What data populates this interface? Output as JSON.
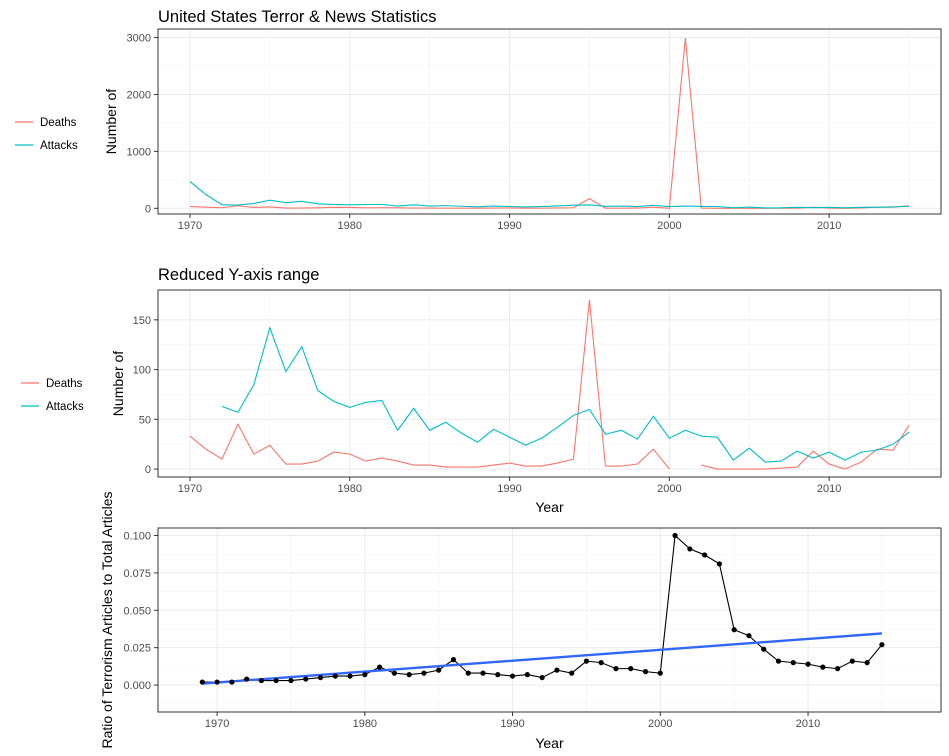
{
  "chart_data": [
    {
      "type": "line",
      "title": "United States Terror & News Statistics",
      "xlabel": "",
      "ylabel": "Number of",
      "xlim": [
        1968,
        2017
      ],
      "ylim": [
        -100,
        3150
      ],
      "x_ticks": [
        1970,
        1980,
        1990,
        2000,
        2010
      ],
      "y_ticks": [
        0,
        1000,
        2000,
        3000
      ],
      "grid": true,
      "legend": "left",
      "x": [
        1970,
        1971,
        1972,
        1973,
        1974,
        1975,
        1976,
        1977,
        1978,
        1979,
        1980,
        1981,
        1982,
        1983,
        1984,
        1985,
        1986,
        1987,
        1988,
        1989,
        1990,
        1991,
        1992,
        1993,
        1994,
        1995,
        1996,
        1997,
        1998,
        1999,
        2000,
        2001,
        2002,
        2003,
        2004,
        2005,
        2006,
        2007,
        2008,
        2009,
        2010,
        2011,
        2012,
        2013,
        2014,
        2015
      ],
      "series": [
        {
          "name": "Deaths",
          "color": "#F8766D",
          "values": [
            33,
            20,
            10,
            45,
            15,
            24,
            5,
            5,
            8,
            17,
            15,
            8,
            11,
            8,
            4,
            4,
            2,
            2,
            2,
            4,
            6,
            3,
            3,
            6,
            10,
            170,
            3,
            3,
            5,
            20,
            0,
            2990,
            4,
            0,
            0,
            0,
            0,
            1,
            2,
            18,
            5,
            0,
            7,
            20,
            19,
            44
          ]
        },
        {
          "name": "Attacks",
          "color": "#00BFC4",
          "values": [
            470,
            240,
            63,
            57,
            85,
            142,
            98,
            123,
            79,
            68,
            62,
            67,
            69,
            39,
            61,
            39,
            47,
            36,
            27,
            40,
            32,
            24,
            31,
            42,
            54,
            60,
            35,
            39,
            30,
            53,
            31,
            39,
            33,
            32,
            9,
            21,
            7,
            8,
            18,
            11,
            17,
            9,
            17,
            19,
            25,
            37
          ]
        }
      ]
    },
    {
      "type": "line",
      "title": "Reduced Y-axis range",
      "xlabel": "Year",
      "ylabel": "Number of",
      "xlim": [
        1968,
        2017
      ],
      "ylim": [
        -8,
        180
      ],
      "x_ticks": [
        1970,
        1980,
        1990,
        2000,
        2010
      ],
      "y_ticks": [
        0,
        50,
        100,
        150
      ],
      "grid": true,
      "legend": "left",
      "x": [
        1970,
        1971,
        1972,
        1973,
        1974,
        1975,
        1976,
        1977,
        1978,
        1979,
        1980,
        1981,
        1982,
        1983,
        1984,
        1985,
        1986,
        1987,
        1988,
        1989,
        1990,
        1991,
        1992,
        1993,
        1994,
        1995,
        1996,
        1997,
        1998,
        1999,
        2000,
        2001,
        2002,
        2003,
        2004,
        2005,
        2006,
        2007,
        2008,
        2009,
        2010,
        2011,
        2012,
        2013,
        2014,
        2015
      ],
      "series": [
        {
          "name": "Deaths",
          "color": "#F8766D",
          "values": [
            33,
            20,
            10,
            45,
            15,
            24,
            5,
            5,
            8,
            17,
            15,
            8,
            11,
            8,
            4,
            4,
            2,
            2,
            2,
            4,
            6,
            3,
            3,
            6,
            10,
            170,
            3,
            3,
            5,
            20,
            0,
            null,
            4,
            0,
            0,
            0,
            0,
            1,
            2,
            18,
            5,
            0,
            7,
            20,
            19,
            44
          ]
        },
        {
          "name": "Attacks",
          "color": "#00BFC4",
          "values": [
            null,
            null,
            63,
            57,
            85,
            142,
            98,
            123,
            79,
            68,
            62,
            67,
            69,
            39,
            61,
            39,
            47,
            36,
            27,
            40,
            32,
            24,
            31,
            42,
            54,
            60,
            35,
            39,
            30,
            53,
            31,
            39,
            33,
            32,
            9,
            21,
            7,
            8,
            18,
            11,
            17,
            9,
            17,
            19,
            25,
            37
          ]
        }
      ]
    },
    {
      "type": "scatter",
      "title": "",
      "xlabel": "Year",
      "ylabel": "Ratio of Terrorism Articles to Total Articles",
      "xlim": [
        1966,
        2019
      ],
      "ylim": [
        -0.018,
        0.105
      ],
      "x_ticks": [
        1970,
        1980,
        1990,
        2000,
        2010
      ],
      "y_ticks": [
        0.0,
        0.025,
        0.05,
        0.075,
        0.1
      ],
      "y_tick_labels": [
        "0.000",
        "0.025",
        "0.050",
        "0.075",
        "0.100"
      ],
      "grid": true,
      "x": [
        1969,
        1970,
        1971,
        1972,
        1973,
        1974,
        1975,
        1976,
        1977,
        1978,
        1979,
        1980,
        1981,
        1982,
        1983,
        1984,
        1985,
        1986,
        1987,
        1988,
        1989,
        1990,
        1991,
        1992,
        1993,
        1994,
        1995,
        1996,
        1997,
        1998,
        1999,
        2000,
        2001,
        2002,
        2003,
        2004,
        2005,
        2006,
        2007,
        2008,
        2009,
        2010,
        2011,
        2012,
        2013,
        2014,
        2015
      ],
      "series": [
        {
          "color": "#000000",
          "values": [
            0.002,
            0.002,
            0.002,
            0.004,
            0.003,
            0.003,
            0.003,
            0.004,
            0.005,
            0.006,
            0.006,
            0.007,
            0.012,
            0.008,
            0.007,
            0.008,
            0.01,
            0.017,
            0.008,
            0.008,
            0.007,
            0.006,
            0.007,
            0.005,
            0.01,
            0.008,
            0.016,
            0.015,
            0.011,
            0.011,
            0.009,
            0.008,
            0.1,
            0.091,
            0.087,
            0.081,
            0.037,
            0.033,
            0.024,
            0.016,
            0.015,
            0.014,
            0.012,
            0.011,
            0.016,
            0.015,
            0.027
          ]
        }
      ],
      "trend": {
        "color": "#3366FF",
        "x": [
          1969,
          2015
        ],
        "values": [
          0.001,
          0.0345
        ]
      }
    }
  ]
}
